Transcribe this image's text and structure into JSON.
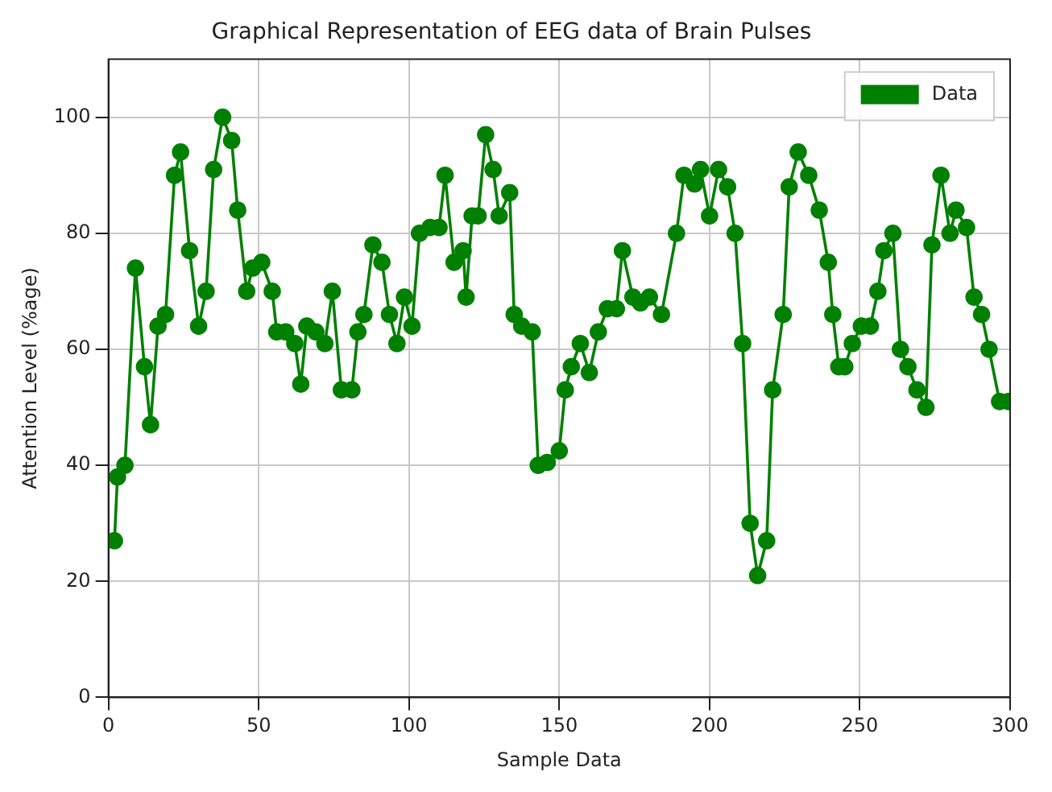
{
  "chart_data": {
    "type": "line",
    "title": "Graphical Representation of EEG data of Brain Pulses",
    "xlabel": "Sample Data",
    "ylabel": "Attention Level (%age)",
    "series": [
      {
        "name": "Data",
        "color": "#008000",
        "x": [
          2,
          3,
          5.5,
          9,
          12,
          14,
          16.5,
          19,
          22,
          24,
          27,
          30,
          32.5,
          35,
          38,
          41,
          43,
          46,
          48,
          51,
          54.5,
          56,
          59,
          62,
          64,
          66,
          69,
          72,
          74.5,
          77.5,
          81,
          83,
          85,
          88,
          91,
          93.5,
          96,
          98.5,
          101,
          103.5,
          107,
          110,
          112,
          115,
          118,
          119,
          121,
          123,
          125.5,
          128,
          130,
          133.5,
          135,
          137.5,
          141,
          143,
          146,
          150,
          152,
          154,
          157,
          160,
          163,
          166,
          169,
          171,
          174.5,
          177,
          180,
          184,
          189,
          191.5,
          195,
          197,
          200,
          203,
          206,
          208.5,
          211,
          213.5,
          216,
          219,
          221,
          224.5,
          226.5,
          229.5,
          233,
          236.5,
          239.5,
          241,
          243,
          245,
          247.5,
          250.5,
          253.5,
          256,
          258,
          261,
          263.5,
          266,
          269,
          272,
          274,
          277,
          280,
          282,
          285.5,
          288,
          290.5,
          293,
          296.5,
          299.5
        ],
        "values": [
          27,
          38,
          40,
          74,
          57,
          47,
          64,
          66,
          90,
          94,
          77,
          64,
          70,
          91,
          100,
          96,
          84,
          70,
          74,
          75,
          70,
          63,
          63,
          61,
          54,
          64,
          63,
          61,
          70,
          53,
          53,
          63,
          66,
          78,
          75,
          66,
          61,
          69,
          64,
          80,
          81,
          81,
          90,
          75,
          77,
          69,
          83,
          83,
          97,
          91,
          83,
          87,
          66,
          64,
          63,
          40,
          40.5,
          42.5,
          53,
          57,
          61,
          56,
          63,
          67,
          67,
          77,
          69,
          68,
          69,
          66,
          80,
          90,
          88.5,
          91,
          83,
          91,
          88,
          80,
          61,
          30,
          21,
          27,
          53,
          66,
          88,
          94,
          90,
          84,
          75,
          66,
          57,
          57,
          61,
          64,
          64,
          70,
          77,
          80,
          60,
          57,
          53,
          50,
          78,
          90,
          80,
          84,
          81,
          69,
          66,
          60,
          51,
          51
        ]
      }
    ],
    "xlim": [
      0,
      300
    ],
    "xticks": [
      0,
      50,
      100,
      150,
      200,
      250,
      300
    ],
    "ylim": [
      0,
      110
    ],
    "yticks": [
      0,
      20,
      40,
      60,
      80,
      100
    ],
    "grid": true,
    "legend": "top right",
    "marker": "circle",
    "line_style": "solid"
  }
}
